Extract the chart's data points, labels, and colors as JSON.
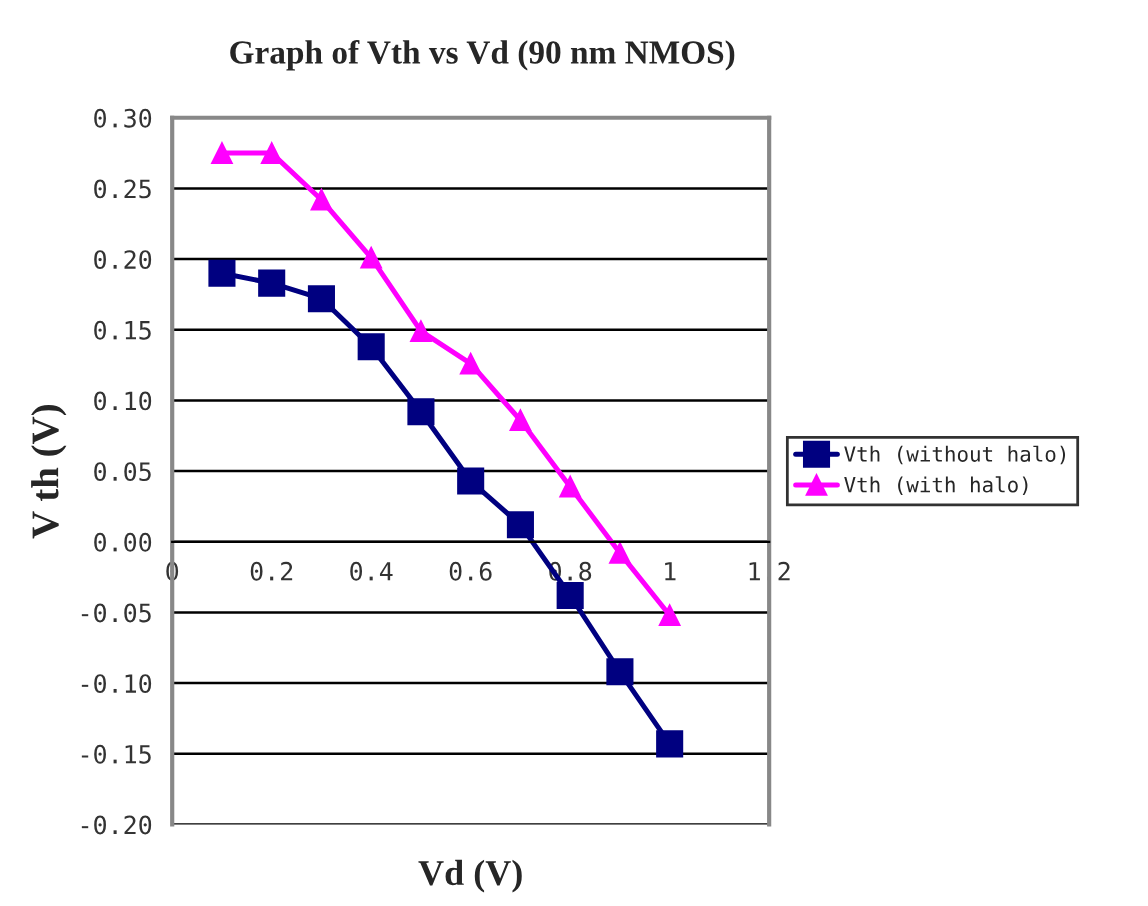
{
  "chart_data": {
    "type": "line",
    "title": "Graph of Vth vs Vd (90 nm NMOS)",
    "xlabel": "Vd (V)",
    "ylabel": "V th (V)",
    "x": [
      0.1,
      0.2,
      0.3,
      0.4,
      0.5,
      0.6,
      0.7,
      0.8,
      0.9,
      1.0
    ],
    "series": [
      {
        "name": "Vth (without halo)",
        "color": "#000080",
        "marker": "square",
        "values": [
          0.19,
          0.183,
          0.172,
          0.138,
          0.092,
          0.043,
          0.012,
          -0.038,
          -0.092,
          -0.143
        ]
      },
      {
        "name": "Vth (with halo)",
        "color": "#ff00ff",
        "marker": "triangle",
        "values": [
          0.275,
          0.275,
          0.242,
          0.201,
          0.149,
          0.126,
          0.086,
          0.039,
          -0.008,
          -0.052
        ]
      }
    ],
    "xlim": [
      0,
      1.2
    ],
    "xticks": [
      0,
      0.2,
      0.4,
      0.6,
      0.8,
      1,
      1.2
    ],
    "ylim": [
      -0.2,
      0.3
    ],
    "yticks": [
      {
        "value": -0.2,
        "label": "-0.20"
      },
      {
        "value": -0.15,
        "label": "-0.15"
      },
      {
        "value": -0.1,
        "label": "-0.10"
      },
      {
        "value": -0.05,
        "label": "-0.05"
      },
      {
        "value": 0,
        "label": "0.00"
      },
      {
        "value": 0.05,
        "label": "0.05"
      },
      {
        "value": 0.1,
        "label": "0.10"
      },
      {
        "value": 0.15,
        "label": "0.15"
      },
      {
        "value": 0.2,
        "label": "0.20"
      },
      {
        "value": 0.25,
        "label": "0.25"
      },
      {
        "value": 0.3,
        "label": "0.30"
      }
    ],
    "grid": "y",
    "legend": "right",
    "line_style": "solid"
  }
}
